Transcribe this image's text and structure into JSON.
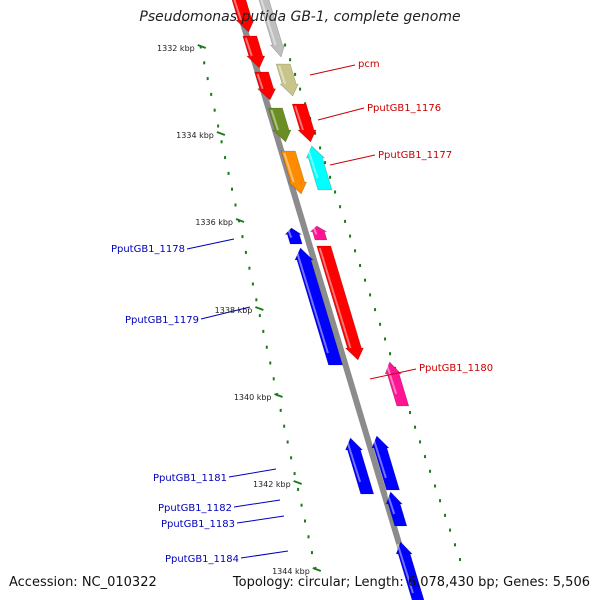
{
  "title": "Pseudomonas putida GB-1, complete genome",
  "footer": {
    "accession": "Accession: NC_010322",
    "summary": "Topology: circular; Length: 6,078,430 bp; Genes: 5,506"
  },
  "colors": {
    "scale_ticks": "#1a7a1a",
    "backbone": "#8c8c8c",
    "label_right": "#cc0000",
    "label_left": "#0000bb"
  },
  "scale_ticks": [
    {
      "label": "1332 kbp"
    },
    {
      "label": "1334 kbp"
    },
    {
      "label": "1336 kbp"
    },
    {
      "label": "1338 kbp"
    },
    {
      "label": "1340 kbp"
    },
    {
      "label": "1342 kbp"
    },
    {
      "label": "1344 kbp"
    }
  ],
  "genes": [
    {
      "name": "",
      "strand": "forward",
      "color": "#ff0000"
    },
    {
      "name": "",
      "strand": "forward",
      "color": "#bfbfbf"
    },
    {
      "name": "",
      "strand": "forward",
      "color": "#ff0000"
    },
    {
      "name": "pcm",
      "strand": "forward",
      "color": "#c8c48a"
    },
    {
      "name": "",
      "strand": "forward",
      "color": "#ff0000"
    },
    {
      "name": "PputGB1_1176",
      "strand": "forward",
      "color": "#6b8e23"
    },
    {
      "name": "",
      "strand": "forward",
      "color": "#ff0000"
    },
    {
      "name": "PputGB1_1177",
      "strand": "forward",
      "color": "#ff8c00"
    },
    {
      "name": "PputGB1_1178",
      "strand": "reverse",
      "color": "#00ffff"
    },
    {
      "name": "",
      "strand": "reverse",
      "color": "#0000ff"
    },
    {
      "name": "PputGB1_1179",
      "strand": "reverse",
      "color": "#ff1493"
    },
    {
      "name": "",
      "strand": "reverse",
      "color": "#0000ff"
    },
    {
      "name": "PputGB1_1180",
      "strand": "forward",
      "color": "#ff0000"
    },
    {
      "name": "PputGB1_1181",
      "strand": "reverse",
      "color": "#ff1493"
    },
    {
      "name": "",
      "strand": "reverse",
      "color": "#0000ff"
    },
    {
      "name": "PputGB1_1182",
      "strand": "reverse",
      "color": "#0000ff"
    },
    {
      "name": "PputGB1_1183",
      "strand": "reverse",
      "color": "#0000ff"
    },
    {
      "name": "PputGB1_1184",
      "strand": "reverse",
      "color": "#0000ff"
    }
  ]
}
